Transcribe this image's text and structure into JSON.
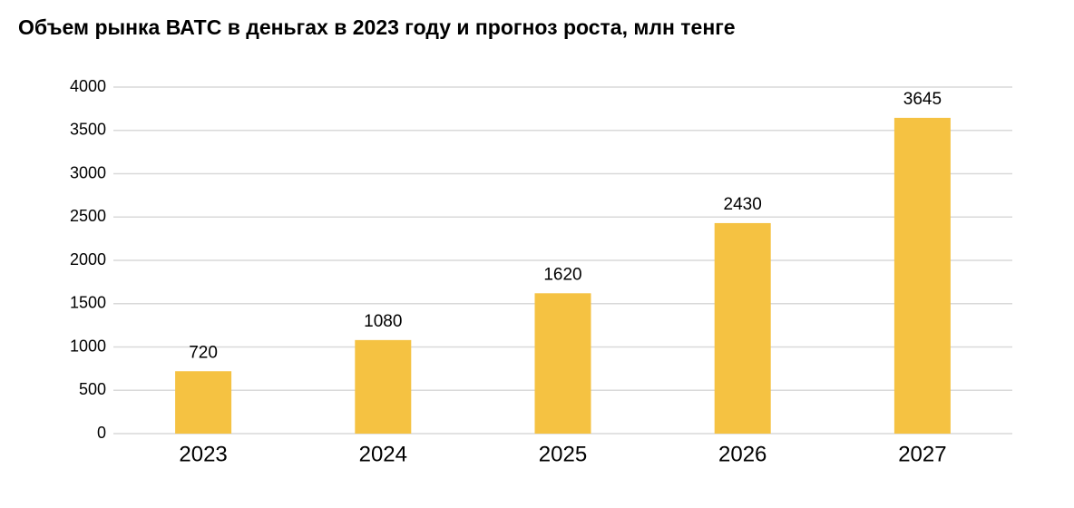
{
  "chart_data": {
    "type": "bar",
    "title": "Объем рынка ВАТС в деньгах в 2023 году и прогноз роста, млн тенге",
    "categories": [
      "2023",
      "2024",
      "2025",
      "2026",
      "2027"
    ],
    "values": [
      720,
      1080,
      1620,
      2430,
      3645
    ],
    "color": "#f5c242",
    "ylim": [
      0,
      4000
    ],
    "yticks": [
      0,
      500,
      1000,
      1500,
      2000,
      2500,
      3000,
      3500,
      4000
    ],
    "grid": true
  }
}
